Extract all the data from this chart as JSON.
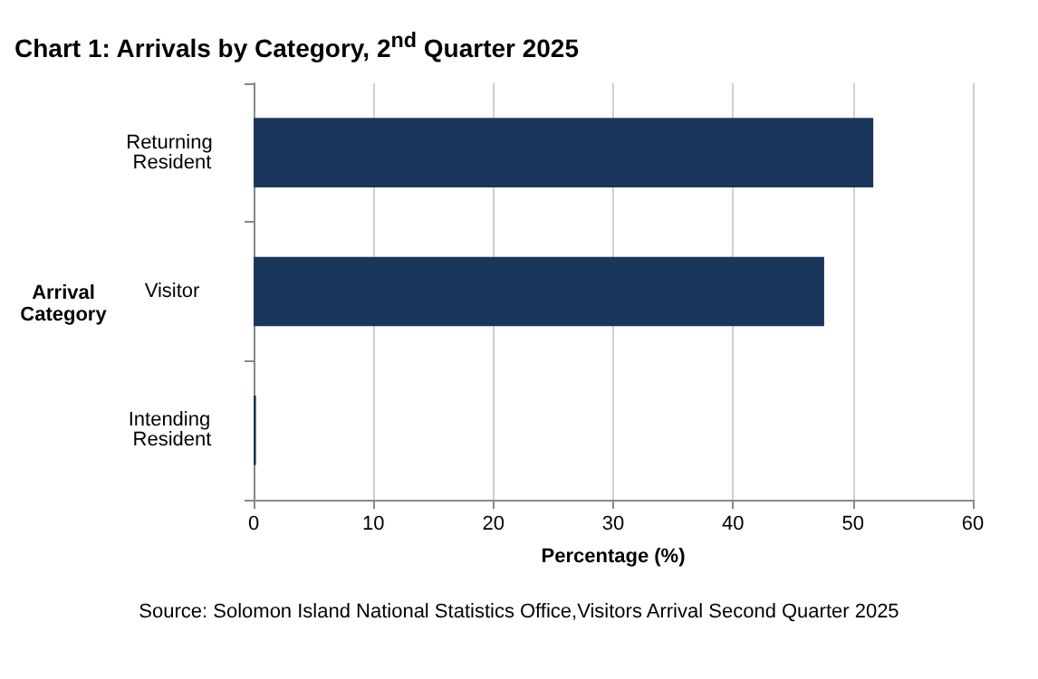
{
  "chart_data": {
    "type": "bar",
    "orientation": "horizontal",
    "title": "Chart 1: Arrivals by Category, 2$^{nd}$ Quarter 2025",
    "xlabel": "Percentage (%)",
    "ylabel": "Arrival Category",
    "categories": [
      "Returning Resident",
      "Visitor",
      "Intending Resident"
    ],
    "values": [
      51.7,
      47.6,
      0.2
    ],
    "color": "#1b365d",
    "xlim": [
      0,
      60
    ],
    "xticks": [
      0,
      10,
      20,
      30,
      40,
      50,
      60
    ],
    "grid": "x",
    "annotations": [
      "Source: Solomon Island National Statistics Office,Visitors Arrival Second Quarter 2025"
    ]
  }
}
